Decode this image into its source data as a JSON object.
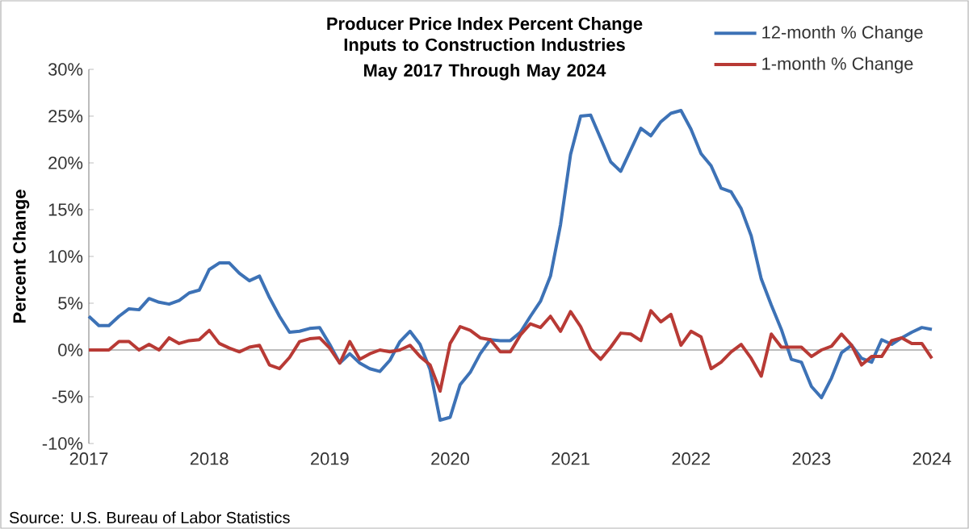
{
  "chart_data": {
    "type": "line",
    "title": "Producer Price Index Percent Change",
    "subtitle": "Inputs to Construction Industries May 2017 Through May 2024",
    "ylabel": "Percent Change",
    "categories": [
      "2017",
      null,
      null,
      null,
      null,
      null,
      null,
      null,
      null,
      null,
      null,
      null,
      "2018",
      null,
      null,
      null,
      null,
      null,
      null,
      null,
      null,
      null,
      null,
      null,
      "2019",
      null,
      null,
      null,
      null,
      null,
      null,
      null,
      null,
      null,
      null,
      null,
      "2020",
      null,
      null,
      null,
      null,
      null,
      null,
      null,
      null,
      null,
      null,
      null,
      "2021",
      null,
      null,
      null,
      null,
      null,
      null,
      null,
      null,
      null,
      null,
      null,
      "2022",
      null,
      null,
      null,
      null,
      null,
      null,
      null,
      null,
      null,
      null,
      null,
      "2023",
      null,
      null,
      null,
      null,
      null,
      null,
      null,
      null,
      null,
      null,
      null,
      "2024"
    ],
    "series": [
      {
        "name": "12-month % Change",
        "color": "#3d72b6",
        "values": [
          3.6,
          2.6,
          2.6,
          3.6,
          4.4,
          4.3,
          5.5,
          5.1,
          4.9,
          5.3,
          6.1,
          6.4,
          8.6,
          9.3,
          9.3,
          8.2,
          7.4,
          7.9,
          5.6,
          3.6,
          1.9,
          2.0,
          2.3,
          2.4,
          0.6,
          -1.4,
          -0.4,
          -1.4,
          -2.0,
          -2.3,
          -1.1,
          0.9,
          2.0,
          0.6,
          -2.1,
          -7.5,
          -7.2,
          -3.7,
          -2.4,
          -0.4,
          1.1,
          1.0,
          1.0,
          1.9,
          3.6,
          5.2,
          7.9,
          13.4,
          20.9,
          25.0,
          25.1,
          22.6,
          20.1,
          19.1,
          21.4,
          23.7,
          22.9,
          24.4,
          25.3,
          25.6,
          23.6,
          21.0,
          19.7,
          17.3,
          16.9,
          15.1,
          12.2,
          7.6,
          4.8,
          2.2,
          -1.0,
          -1.3,
          -3.9,
          -5.1,
          -3.0,
          -0.3,
          0.5,
          -0.9,
          -1.3,
          1.1,
          0.6,
          1.3,
          1.9,
          2.4,
          2.2
        ]
      },
      {
        "name": "1-month % Change",
        "color": "#b83a35",
        "values": [
          0.0,
          0.0,
          0.0,
          0.9,
          0.9,
          0.0,
          0.6,
          0.0,
          1.3,
          0.7,
          1.0,
          1.1,
          2.1,
          0.7,
          0.2,
          -0.2,
          0.3,
          0.5,
          -1.6,
          -2.0,
          -0.8,
          0.9,
          1.2,
          1.3,
          0.2,
          -1.4,
          0.9,
          -1.0,
          -0.4,
          0.0,
          -0.2,
          0.0,
          0.5,
          -0.7,
          -1.6,
          -4.4,
          0.7,
          2.5,
          2.1,
          1.3,
          1.1,
          -0.2,
          -0.2,
          1.6,
          2.8,
          2.4,
          3.6,
          2.0,
          4.1,
          2.5,
          0.1,
          -1.0,
          0.3,
          1.8,
          1.7,
          1.0,
          4.2,
          3.0,
          3.8,
          0.5,
          2.0,
          1.4,
          -2.0,
          -1.3,
          -0.2,
          0.6,
          -0.9,
          -2.8,
          1.7,
          0.3,
          0.3,
          0.3,
          -0.7,
          0.0,
          0.4,
          1.7,
          0.5,
          -1.6,
          -0.7,
          -0.7,
          1.0,
          1.3,
          0.7,
          0.7,
          -0.9
        ]
      }
    ],
    "ylim": [
      -10,
      30
    ],
    "yticks": [
      {
        "value": -10,
        "label": "-10%"
      },
      {
        "value": -5,
        "label": "-5%"
      },
      {
        "value": 0,
        "label": "0%"
      },
      {
        "value": 5,
        "label": "5%"
      },
      {
        "value": 10,
        "label": "10%"
      },
      {
        "value": 15,
        "label": "15%"
      },
      {
        "value": 20,
        "label": "20%"
      },
      {
        "value": 25,
        "label": "25%"
      },
      {
        "value": 30,
        "label": "30%"
      }
    ],
    "legend": "top right",
    "line_style": "solid",
    "annotations": [
      "Source: U.S. Bureau of Labor Statistics"
    ]
  }
}
